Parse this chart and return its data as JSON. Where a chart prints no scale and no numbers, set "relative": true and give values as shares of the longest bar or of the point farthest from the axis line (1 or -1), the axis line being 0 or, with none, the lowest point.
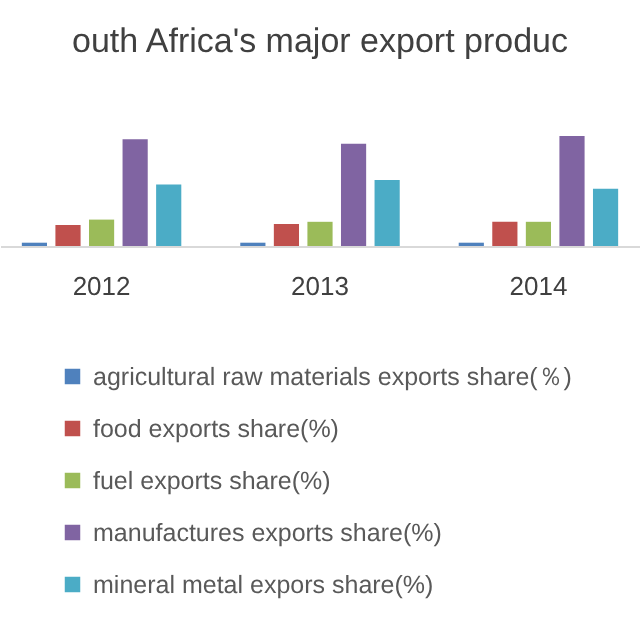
{
  "chart_data": {
    "type": "bar",
    "title": "outh Africa's major export produc",
    "relative": true,
    "categories": [
      "2012",
      "2013",
      "2014"
    ],
    "legend": "bottom",
    "series": [
      {
        "name": "agricultural raw materials exports share(％)",
        "color": "#4f81bd",
        "values": [
          0.03,
          0.03,
          0.03
        ]
      },
      {
        "name": "food exports share(%)",
        "color": "#c0504d",
        "values": [
          0.19,
          0.2,
          0.22
        ]
      },
      {
        "name": "fuel exports share(%)",
        "color": "#9bbb59",
        "values": [
          0.24,
          0.22,
          0.22
        ]
      },
      {
        "name": "manufactures exports share(%)",
        "color": "#8064a2",
        "values": [
          0.97,
          0.93,
          1
        ]
      },
      {
        "name": "mineral metal expors share(%)",
        "color": "#4bacc6",
        "values": [
          0.56,
          0.6,
          0.52
        ]
      }
    ]
  }
}
